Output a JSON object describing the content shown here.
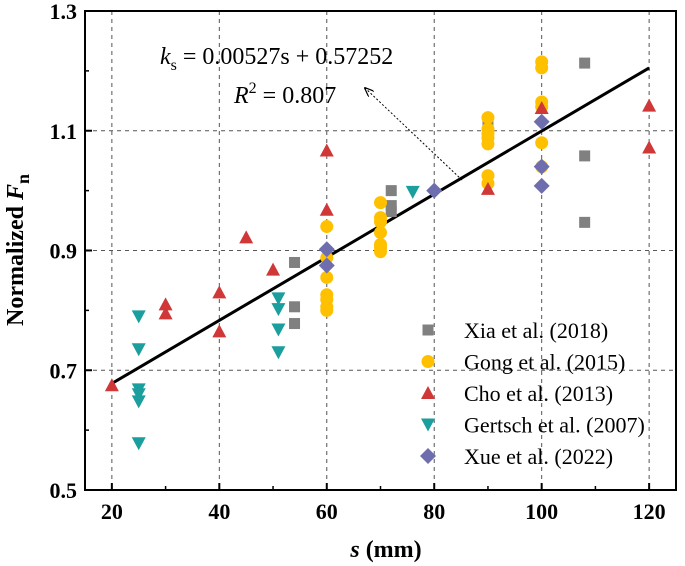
{
  "chart_data": {
    "type": "scatter",
    "xlabel": "s (mm)",
    "ylabel": "Normalized F n",
    "xlabel_main": "s",
    "xlabel_unit": " (mm)",
    "ylabel_main": "Normalized ",
    "ylabel_var": "F",
    "ylabel_sub": "n",
    "xlim": [
      15,
      125
    ],
    "ylim": [
      0.5,
      1.3
    ],
    "xticks": [
      20,
      40,
      60,
      80,
      100,
      120
    ],
    "yticks": [
      0.5,
      0.7,
      0.9,
      1.1,
      1.3
    ],
    "xtick_labels": [
      "20",
      "40",
      "60",
      "80",
      "100",
      "120"
    ],
    "ytick_labels": [
      "0.5",
      "0.7",
      "0.9",
      "1.1",
      "1.3"
    ],
    "grid": true,
    "legend_position": "bottom-right",
    "fit": {
      "slope": 0.00527,
      "intercept": 0.57252,
      "x_range": [
        20,
        120
      ],
      "equation_lhs": "k",
      "equation_lhs_sub": "s",
      "equation_rhs": " = 0.00527s + 0.57252",
      "r2_label": "R",
      "r2_sup": "2",
      "r2_value": " = 0.807"
    },
    "series": [
      {
        "name": "Xia et al. (2018)",
        "marker": "square",
        "color": "#808080",
        "points": [
          [
            54,
            0.88
          ],
          [
            54,
            0.806
          ],
          [
            54,
            0.778
          ],
          [
            72,
            1.0
          ],
          [
            72,
            0.975
          ],
          [
            72,
            0.965
          ],
          [
            90,
            1.107
          ],
          [
            108,
            1.213
          ],
          [
            108,
            1.058
          ],
          [
            108,
            0.947
          ]
        ]
      },
      {
        "name": "Gong et al. (2015)",
        "marker": "circle",
        "color": "#FFC000",
        "points": [
          [
            60,
            0.94
          ],
          [
            60,
            0.888
          ],
          [
            60,
            0.855
          ],
          [
            60,
            0.826
          ],
          [
            60,
            0.818
          ],
          [
            60,
            0.806
          ],
          [
            60,
            0.8
          ],
          [
            70,
            0.98
          ],
          [
            70,
            0.955
          ],
          [
            70,
            0.948
          ],
          [
            70,
            0.93
          ],
          [
            70,
            0.91
          ],
          [
            70,
            0.905
          ],
          [
            70,
            0.898
          ],
          [
            90,
            1.122
          ],
          [
            90,
            1.103
          ],
          [
            90,
            1.095
          ],
          [
            90,
            1.088
          ],
          [
            90,
            1.078
          ],
          [
            90,
            1.025
          ],
          [
            90,
            1.012
          ],
          [
            100,
            1.215
          ],
          [
            100,
            1.205
          ],
          [
            100,
            1.148
          ],
          [
            100,
            1.14
          ],
          [
            100,
            1.08
          ],
          [
            100,
            1.04
          ]
        ]
      },
      {
        "name": "Cho et al. (2013)",
        "marker": "triangle-up",
        "color": "#D03838",
        "points": [
          [
            20,
            0.675
          ],
          [
            30,
            0.81
          ],
          [
            30,
            0.795
          ],
          [
            40,
            0.83
          ],
          [
            40,
            0.765
          ],
          [
            45,
            0.922
          ],
          [
            50,
            0.868
          ],
          [
            60,
            1.067
          ],
          [
            60,
            0.968
          ],
          [
            90,
            1.003
          ],
          [
            100,
            1.138
          ],
          [
            120,
            1.142
          ],
          [
            120,
            1.072
          ]
        ]
      },
      {
        "name": "Gertsch et al. (2007)",
        "marker": "triangle-down",
        "color": "#1A9E9E",
        "points": [
          [
            25,
            0.79
          ],
          [
            25,
            0.735
          ],
          [
            25,
            0.668
          ],
          [
            25,
            0.66
          ],
          [
            25,
            0.648
          ],
          [
            25,
            0.578
          ],
          [
            51,
            0.82
          ],
          [
            51,
            0.802
          ],
          [
            51,
            0.768
          ],
          [
            51,
            0.73
          ],
          [
            76,
            0.998
          ]
        ]
      },
      {
        "name": "Xue et al. (2022)",
        "marker": "diamond",
        "color": "#6E6EAE",
        "points": [
          [
            60,
            0.902
          ],
          [
            60,
            0.875
          ],
          [
            80,
            1.0
          ],
          [
            100,
            1.115
          ],
          [
            100,
            1.04
          ],
          [
            100,
            1.008
          ]
        ]
      }
    ]
  }
}
